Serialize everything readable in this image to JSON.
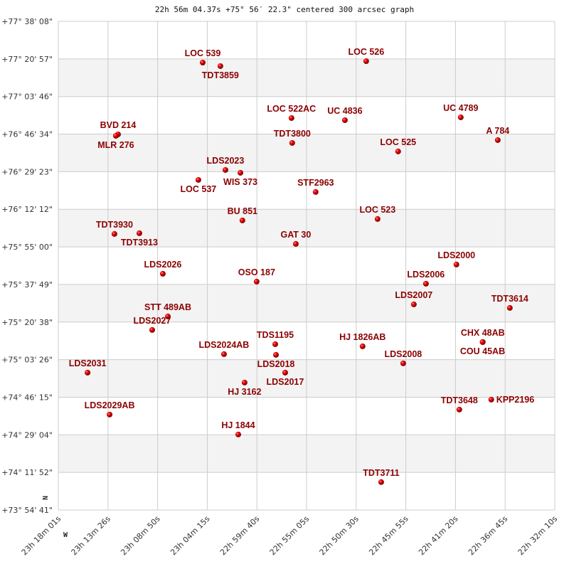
{
  "chart_data": {
    "type": "scatter",
    "title": "22h 56m 04.37s +75° 56′ 22.3\" centered 300 arcsec graph",
    "x_axis": {
      "quantity": "right ascension",
      "range": [
        "23h 18m 01s",
        "22h 32m 10s"
      ],
      "reversed": true,
      "ticks": [
        "23h 18m 01s",
        "23h 13m 26s",
        "23h 08m 50s",
        "23h 04m 15s",
        "22h 59m 40s",
        "22h 55m 05s",
        "22h 50m 30s",
        "22h 45m 55s",
        "22h 41m 20s",
        "22h 36m 45s",
        "22h 32m 10s"
      ]
    },
    "y_axis": {
      "quantity": "declination",
      "range": [
        "+73° 54' 41\"",
        "+77° 38' 08\""
      ],
      "ticks": [
        "+77° 38' 08\"",
        "+77° 20' 57\"",
        "+77° 03' 46\"",
        "+76° 46' 34\"",
        "+76° 29' 23\"",
        "+76° 12' 12\"",
        "+75° 55' 00\"",
        "+75° 37' 49\"",
        "+75° 20' 38\"",
        "+75° 03' 26\"",
        "+74° 46' 15\"",
        "+74° 29' 04\"",
        "+74° 11' 52\"",
        "+73° 54' 41\""
      ]
    },
    "grid": true,
    "alternating_bands": true,
    "compass": {
      "north": "N",
      "west": "W"
    },
    "colors": {
      "marker": "#dd0000",
      "label": "#8b0000",
      "grid": "#cccccc",
      "band": "#f3f3f3"
    },
    "points": [
      {
        "name": "LOC 539",
        "ra": "23h 04m 41s",
        "dec": "+77° 19' 16\""
      },
      {
        "name": "TDT3859",
        "ra": "23h 03m 03s",
        "dec": "+77° 17' 39\""
      },
      {
        "name": "LOC 526",
        "ra": "22h 49m 35s",
        "dec": "+77° 19' 55\""
      },
      {
        "name": "LOC 522AC",
        "ra": "22h 56m 29s",
        "dec": "+76° 53' 55\""
      },
      {
        "name": "UC 4836",
        "ra": "22h 51m 33s",
        "dec": "+76° 52' 56\""
      },
      {
        "name": "UC 4789",
        "ra": "22h 40m 51s",
        "dec": "+76° 54' 14\""
      },
      {
        "name": "A   784",
        "ra": "22h 37m 26s",
        "dec": "+76° 43' 50\""
      },
      {
        "name": "TDT3800",
        "ra": "22h 56m 25s",
        "dec": "+76° 42' 32\""
      },
      {
        "name": "LOC 525",
        "ra": "22h 46m 38s",
        "dec": "+76° 38' 38\""
      },
      {
        "name": "BVD 214",
        "ra": "23h 12m 30s",
        "dec": "+76° 46' 26\""
      },
      {
        "name": "MLR 276",
        "ra": "23h 12m 42s",
        "dec": "+76° 45' 47\""
      },
      {
        "name": "LDS2023",
        "ra": "23h 02m 35s",
        "dec": "+76° 30' 10\""
      },
      {
        "name": "WIS 373",
        "ra": "23h 01m 12s",
        "dec": "+76° 28' 52\""
      },
      {
        "name": "LOC 537",
        "ra": "23h 05m 05s",
        "dec": "+76° 25' 37\""
      },
      {
        "name": "STF2963",
        "ra": "22h 54m 15s",
        "dec": "+76° 20' 06\""
      },
      {
        "name": "BU  851",
        "ra": "23h 01m 01s",
        "dec": "+76° 07' 05\""
      },
      {
        "name": "LOC 523",
        "ra": "22h 48m 32s",
        "dec": "+76° 07' 44\""
      },
      {
        "name": "TDT3930",
        "ra": "23h 12m 50s",
        "dec": "+76° 00' 55\""
      },
      {
        "name": "TDT3913",
        "ra": "23h 10m 32s",
        "dec": "+76° 01' 14\""
      },
      {
        "name": "GAT  30",
        "ra": "22h 56m 05s",
        "dec": "+75° 56' 21\""
      },
      {
        "name": "LDS2026",
        "ra": "23h 08m 22s",
        "dec": "+75° 42' 42\""
      },
      {
        "name": "OSO 187",
        "ra": "22h 59m 42s",
        "dec": "+75° 39' 07\""
      },
      {
        "name": "LDS2000",
        "ra": "22h 41m 15s",
        "dec": "+75° 46' 56\""
      },
      {
        "name": "LDS2006",
        "ra": "22h 44m 04s",
        "dec": "+75° 38' 09\""
      },
      {
        "name": "LDS2007",
        "ra": "22h 45m 11s",
        "dec": "+75° 28' 43\""
      },
      {
        "name": "TDT3614",
        "ra": "22h 36m 19s",
        "dec": "+75° 27' 05\""
      },
      {
        "name": "STT 489AB",
        "ra": "23h 07m 54s",
        "dec": "+75° 23' 11\""
      },
      {
        "name": "LDS2027",
        "ra": "23h 09m 21s",
        "dec": "+75° 17' 01\""
      },
      {
        "name": "TDS1195",
        "ra": "22h 57m 59s",
        "dec": "+75° 10' 30\""
      },
      {
        "name": "LDS2018",
        "ra": "22h 57m 55s",
        "dec": "+75° 05' 38\""
      },
      {
        "name": "LDS2024AB",
        "ra": "23h 02m 43s",
        "dec": "+75° 05' 57\""
      },
      {
        "name": "HJ 1826AB",
        "ra": "22h 49m 55s",
        "dec": "+75° 09' 32\""
      },
      {
        "name": "CHX  48AB",
        "ra": "22h 38m 49s",
        "dec": "+75° 11' 29\""
      },
      {
        "name": "COU  45AB",
        "ra": "22h 38m 50s",
        "dec": "+75° 11' 27\""
      },
      {
        "name": "LDS2008",
        "ra": "22h 46m 10s",
        "dec": "+75° 01' 44\""
      },
      {
        "name": "LDS2031",
        "ra": "23h 15m 19s",
        "dec": "+74° 57' 30\""
      },
      {
        "name": "LDS2017",
        "ra": "22h 57m 04s",
        "dec": "+74° 57' 30\""
      },
      {
        "name": "HJ 3162",
        "ra": "23h 00m 49s",
        "dec": "+74° 52' 57\""
      },
      {
        "name": "TDT3648",
        "ra": "22h 40m 59s",
        "dec": "+74° 40' 36\""
      },
      {
        "name": "KPP2196",
        "ra": "22h 38m 02s",
        "dec": "+74° 45' 09\""
      },
      {
        "name": "LDS2029AB",
        "ra": "23h 13m 17s",
        "dec": "+74° 38' 19\""
      },
      {
        "name": "HJ 1844",
        "ra": "23h 01m 24s",
        "dec": "+74° 29' 13\""
      },
      {
        "name": "TDT3711",
        "ra": "22h 48m 12s",
        "dec": "+74° 07' 26\""
      }
    ]
  }
}
